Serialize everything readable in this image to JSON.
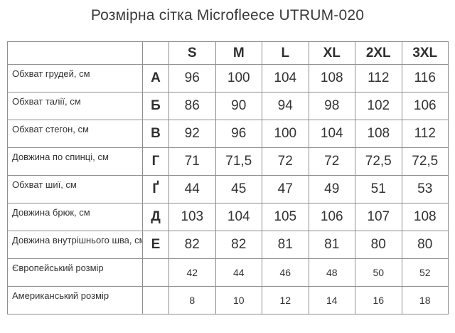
{
  "title": "Розмірна сітка Microfleece UTRUM-020",
  "table": {
    "size_headers": [
      "S",
      "M",
      "L",
      "XL",
      "2XL",
      "3XL"
    ],
    "rows": [
      {
        "label": "Обхват грудей, см",
        "letter": "А",
        "small": false,
        "values": [
          "96",
          "100",
          "104",
          "108",
          "112",
          "116"
        ]
      },
      {
        "label": "Обхват талії, см",
        "letter": "Б",
        "small": false,
        "values": [
          "86",
          "90",
          "94",
          "98",
          "102",
          "106"
        ]
      },
      {
        "label": "Обхват стегон, см",
        "letter": "В",
        "small": false,
        "values": [
          "92",
          "96",
          "100",
          "104",
          "108",
          "112"
        ]
      },
      {
        "label": "Довжина по спинці, см",
        "letter": "Г",
        "small": false,
        "values": [
          "71",
          "71,5",
          "72",
          "72",
          "72,5",
          "72,5"
        ]
      },
      {
        "label": "Обхват шиї, см",
        "letter": "Ґ",
        "small": false,
        "values": [
          "44",
          "45",
          "47",
          "49",
          "51",
          "53"
        ]
      },
      {
        "label": "Довжина брюк, см",
        "letter": "Д",
        "small": false,
        "values": [
          "103",
          "104",
          "105",
          "106",
          "107",
          "108"
        ]
      },
      {
        "label": "Довжина внутрішнього шва, см",
        "letter": "Е",
        "small": false,
        "values": [
          "82",
          "82",
          "81",
          "81",
          "80",
          "80"
        ]
      },
      {
        "label": "Європейський розмір",
        "letter": "",
        "small": true,
        "values": [
          "42",
          "44",
          "46",
          "48",
          "50",
          "52"
        ]
      },
      {
        "label": "Американський розмір",
        "letter": "",
        "small": true,
        "values": [
          "8",
          "10",
          "12",
          "14",
          "16",
          "18"
        ]
      }
    ]
  },
  "colors": {
    "bg": "#ffffff",
    "text": "#333333",
    "title": "#3a3a3a",
    "border": "#8f8f8f"
  }
}
